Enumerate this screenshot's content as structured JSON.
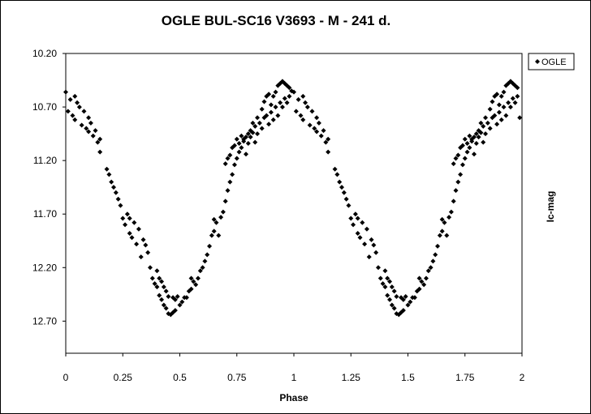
{
  "chart_data": {
    "type": "scatter",
    "title": "OGLE BUL-SC16  V3693 - M - 241 d.",
    "xlabel": "Phase",
    "ylabel": "Ic-mag",
    "xlim": [
      0,
      2
    ],
    "ylim": [
      10.2,
      13.0
    ],
    "y_inverted": true,
    "grid": false,
    "legend_position": "top-right",
    "x_ticks": [
      "0",
      "0.25",
      "0.5",
      "0.75",
      "1",
      "1.25",
      "1.5",
      "1.75",
      "2"
    ],
    "y_ticks": [
      "10.20",
      "10.70",
      "11.20",
      "11.70",
      "12.20",
      "12.70"
    ],
    "series": [
      {
        "name": "OGLE",
        "marker": "diamond",
        "color": "#000000",
        "points": [
          [
            0.0,
            10.56
          ],
          [
            0.01,
            10.74
          ],
          [
            0.02,
            10.63
          ],
          [
            0.03,
            10.78
          ],
          [
            0.04,
            10.6
          ],
          [
            0.04,
            10.82
          ],
          [
            0.05,
            10.66
          ],
          [
            0.06,
            10.7
          ],
          [
            0.07,
            10.87
          ],
          [
            0.08,
            10.74
          ],
          [
            0.09,
            10.9
          ],
          [
            0.1,
            10.8
          ],
          [
            0.1,
            10.93
          ],
          [
            0.11,
            10.85
          ],
          [
            0.12,
            10.97
          ],
          [
            0.13,
            10.92
          ],
          [
            0.14,
            11.03
          ],
          [
            0.15,
            11.0
          ],
          [
            0.15,
            11.12
          ],
          [
            0.18,
            11.28
          ],
          [
            0.19,
            11.33
          ],
          [
            0.2,
            11.4
          ],
          [
            0.21,
            11.45
          ],
          [
            0.22,
            11.5
          ],
          [
            0.23,
            11.56
          ],
          [
            0.24,
            11.62
          ],
          [
            0.25,
            11.74
          ],
          [
            0.26,
            11.8
          ],
          [
            0.27,
            11.7
          ],
          [
            0.28,
            11.88
          ],
          [
            0.28,
            11.74
          ],
          [
            0.29,
            11.92
          ],
          [
            0.3,
            11.78
          ],
          [
            0.31,
            11.98
          ],
          [
            0.32,
            11.84
          ],
          [
            0.33,
            12.1
          ],
          [
            0.34,
            11.94
          ],
          [
            0.35,
            11.99
          ],
          [
            0.36,
            12.06
          ],
          [
            0.37,
            12.2
          ],
          [
            0.38,
            12.3
          ],
          [
            0.39,
            12.35
          ],
          [
            0.4,
            12.38
          ],
          [
            0.41,
            12.46
          ],
          [
            0.42,
            12.5
          ],
          [
            0.43,
            12.55
          ],
          [
            0.44,
            12.58
          ],
          [
            0.45,
            12.63
          ],
          [
            0.46,
            12.64
          ],
          [
            0.47,
            12.62
          ],
          [
            0.48,
            12.6
          ],
          [
            0.4,
            12.23
          ],
          [
            0.41,
            12.3
          ],
          [
            0.42,
            12.33
          ],
          [
            0.43,
            12.38
          ],
          [
            0.44,
            12.42
          ],
          [
            0.45,
            12.47
          ],
          [
            0.47,
            12.48
          ],
          [
            0.48,
            12.5
          ],
          [
            0.49,
            12.47
          ],
          [
            0.5,
            12.55
          ],
          [
            0.51,
            12.52
          ],
          [
            0.52,
            12.48
          ],
          [
            0.53,
            12.48
          ],
          [
            0.54,
            12.42
          ],
          [
            0.55,
            12.3
          ],
          [
            0.55,
            12.4
          ],
          [
            0.56,
            12.33
          ],
          [
            0.57,
            12.36
          ],
          [
            0.58,
            12.3
          ],
          [
            0.59,
            12.23
          ],
          [
            0.6,
            12.2
          ],
          [
            0.61,
            12.14
          ],
          [
            0.62,
            12.08
          ],
          [
            0.63,
            12.0
          ],
          [
            0.64,
            11.9
          ],
          [
            0.65,
            11.86
          ],
          [
            0.65,
            11.75
          ],
          [
            0.66,
            11.78
          ],
          [
            0.67,
            11.9
          ],
          [
            0.68,
            11.73
          ],
          [
            0.69,
            11.68
          ],
          [
            0.7,
            11.58
          ],
          [
            0.71,
            11.48
          ],
          [
            0.72,
            11.4
          ],
          [
            0.73,
            11.33
          ],
          [
            0.74,
            11.24
          ],
          [
            0.75,
            11.18
          ],
          [
            0.76,
            11.12
          ],
          [
            0.77,
            11.08
          ],
          [
            0.78,
            11.0
          ],
          [
            0.79,
            10.98
          ],
          [
            0.8,
            10.95
          ],
          [
            0.81,
            10.92
          ],
          [
            0.82,
            10.94
          ],
          [
            0.7,
            11.23
          ],
          [
            0.71,
            11.18
          ],
          [
            0.72,
            11.15
          ],
          [
            0.73,
            11.08
          ],
          [
            0.74,
            11.06
          ],
          [
            0.75,
            11.0
          ],
          [
            0.76,
            11.04
          ],
          [
            0.77,
            10.97
          ],
          [
            0.78,
            11.02
          ],
          [
            0.79,
            11.14
          ],
          [
            0.8,
            11.04
          ],
          [
            0.81,
            10.98
          ],
          [
            0.82,
            10.85
          ],
          [
            0.83,
            10.88
          ],
          [
            0.84,
            10.8
          ],
          [
            0.83,
            11.03
          ],
          [
            0.84,
            10.95
          ],
          [
            0.85,
            10.85
          ],
          [
            0.86,
            10.9
          ],
          [
            0.87,
            10.8
          ],
          [
            0.88,
            10.78
          ],
          [
            0.89,
            10.86
          ],
          [
            0.9,
            10.68
          ],
          [
            0.91,
            10.6
          ],
          [
            0.92,
            10.56
          ],
          [
            0.93,
            10.5
          ],
          [
            0.94,
            10.48
          ],
          [
            0.95,
            10.46
          ],
          [
            0.96,
            10.48
          ],
          [
            0.97,
            10.5
          ],
          [
            0.98,
            10.52
          ],
          [
            0.86,
            10.72
          ],
          [
            0.87,
            10.65
          ],
          [
            0.88,
            10.6
          ],
          [
            0.89,
            10.58
          ],
          [
            0.9,
            10.75
          ],
          [
            0.91,
            10.82
          ],
          [
            0.92,
            10.7
          ],
          [
            0.93,
            10.78
          ],
          [
            0.94,
            10.66
          ],
          [
            0.95,
            10.7
          ],
          [
            0.96,
            10.62
          ],
          [
            0.97,
            10.66
          ],
          [
            0.98,
            10.6
          ],
          [
            0.99,
            10.55
          ],
          [
            1.0,
            10.56
          ],
          [
            1.01,
            10.74
          ],
          [
            1.02,
            10.63
          ],
          [
            1.03,
            10.78
          ],
          [
            1.04,
            10.6
          ],
          [
            1.04,
            10.82
          ],
          [
            1.05,
            10.66
          ],
          [
            1.06,
            10.7
          ],
          [
            1.07,
            10.87
          ],
          [
            1.08,
            10.74
          ],
          [
            1.09,
            10.9
          ],
          [
            1.1,
            10.8
          ],
          [
            1.1,
            10.93
          ],
          [
            1.11,
            10.85
          ],
          [
            1.12,
            10.97
          ],
          [
            1.13,
            10.92
          ],
          [
            1.14,
            11.03
          ],
          [
            1.15,
            11.0
          ],
          [
            1.15,
            11.12
          ],
          [
            1.18,
            11.28
          ],
          [
            1.19,
            11.33
          ],
          [
            1.2,
            11.4
          ],
          [
            1.21,
            11.45
          ],
          [
            1.22,
            11.5
          ],
          [
            1.23,
            11.56
          ],
          [
            1.24,
            11.62
          ],
          [
            1.25,
            11.74
          ],
          [
            1.26,
            11.8
          ],
          [
            1.27,
            11.7
          ],
          [
            1.28,
            11.88
          ],
          [
            1.28,
            11.74
          ],
          [
            1.29,
            11.92
          ],
          [
            1.3,
            11.78
          ],
          [
            1.31,
            11.98
          ],
          [
            1.32,
            11.84
          ],
          [
            1.33,
            12.1
          ],
          [
            1.34,
            11.94
          ],
          [
            1.35,
            11.99
          ],
          [
            1.36,
            12.06
          ],
          [
            1.37,
            12.2
          ],
          [
            1.38,
            12.3
          ],
          [
            1.39,
            12.35
          ],
          [
            1.4,
            12.38
          ],
          [
            1.41,
            12.46
          ],
          [
            1.42,
            12.5
          ],
          [
            1.43,
            12.55
          ],
          [
            1.44,
            12.58
          ],
          [
            1.45,
            12.63
          ],
          [
            1.46,
            12.64
          ],
          [
            1.47,
            12.62
          ],
          [
            1.48,
            12.6
          ],
          [
            1.4,
            12.23
          ],
          [
            1.41,
            12.3
          ],
          [
            1.42,
            12.33
          ],
          [
            1.43,
            12.38
          ],
          [
            1.44,
            12.42
          ],
          [
            1.45,
            12.47
          ],
          [
            1.47,
            12.48
          ],
          [
            1.48,
            12.5
          ],
          [
            1.49,
            12.47
          ],
          [
            1.5,
            12.55
          ],
          [
            1.51,
            12.52
          ],
          [
            1.52,
            12.48
          ],
          [
            1.53,
            12.48
          ],
          [
            1.54,
            12.42
          ],
          [
            1.55,
            12.3
          ],
          [
            1.55,
            12.4
          ],
          [
            1.56,
            12.33
          ],
          [
            1.57,
            12.36
          ],
          [
            1.58,
            12.3
          ],
          [
            1.59,
            12.23
          ],
          [
            1.6,
            12.2
          ],
          [
            1.61,
            12.14
          ],
          [
            1.62,
            12.08
          ],
          [
            1.63,
            12.0
          ],
          [
            1.64,
            11.9
          ],
          [
            1.65,
            11.86
          ],
          [
            1.65,
            11.75
          ],
          [
            1.66,
            11.78
          ],
          [
            1.67,
            11.9
          ],
          [
            1.68,
            11.73
          ],
          [
            1.69,
            11.68
          ],
          [
            1.7,
            11.58
          ],
          [
            1.71,
            11.48
          ],
          [
            1.72,
            11.4
          ],
          [
            1.73,
            11.33
          ],
          [
            1.74,
            11.24
          ],
          [
            1.75,
            11.18
          ],
          [
            1.76,
            11.12
          ],
          [
            1.77,
            11.08
          ],
          [
            1.78,
            11.0
          ],
          [
            1.79,
            10.98
          ],
          [
            1.8,
            10.95
          ],
          [
            1.81,
            10.92
          ],
          [
            1.82,
            10.94
          ],
          [
            1.7,
            11.23
          ],
          [
            1.71,
            11.18
          ],
          [
            1.72,
            11.15
          ],
          [
            1.73,
            11.08
          ],
          [
            1.74,
            11.06
          ],
          [
            1.75,
            11.0
          ],
          [
            1.76,
            11.04
          ],
          [
            1.77,
            10.97
          ],
          [
            1.78,
            11.02
          ],
          [
            1.79,
            11.14
          ],
          [
            1.8,
            11.04
          ],
          [
            1.81,
            10.98
          ],
          [
            1.82,
            10.85
          ],
          [
            1.83,
            10.88
          ],
          [
            1.84,
            10.8
          ],
          [
            1.83,
            11.03
          ],
          [
            1.84,
            10.95
          ],
          [
            1.85,
            10.85
          ],
          [
            1.86,
            10.9
          ],
          [
            1.87,
            10.8
          ],
          [
            1.88,
            10.78
          ],
          [
            1.89,
            10.86
          ],
          [
            1.9,
            10.68
          ],
          [
            1.91,
            10.6
          ],
          [
            1.92,
            10.56
          ],
          [
            1.93,
            10.5
          ],
          [
            1.94,
            10.48
          ],
          [
            1.95,
            10.46
          ],
          [
            1.96,
            10.48
          ],
          [
            1.97,
            10.5
          ],
          [
            1.98,
            10.52
          ],
          [
            1.86,
            10.72
          ],
          [
            1.87,
            10.65
          ],
          [
            1.88,
            10.6
          ],
          [
            1.89,
            10.58
          ],
          [
            1.9,
            10.75
          ],
          [
            1.91,
            10.82
          ],
          [
            1.92,
            10.7
          ],
          [
            1.93,
            10.78
          ],
          [
            1.94,
            10.66
          ],
          [
            1.95,
            10.7
          ],
          [
            1.96,
            10.62
          ],
          [
            1.97,
            10.66
          ],
          [
            1.98,
            10.6
          ],
          [
            1.99,
            10.8
          ]
        ]
      }
    ]
  }
}
